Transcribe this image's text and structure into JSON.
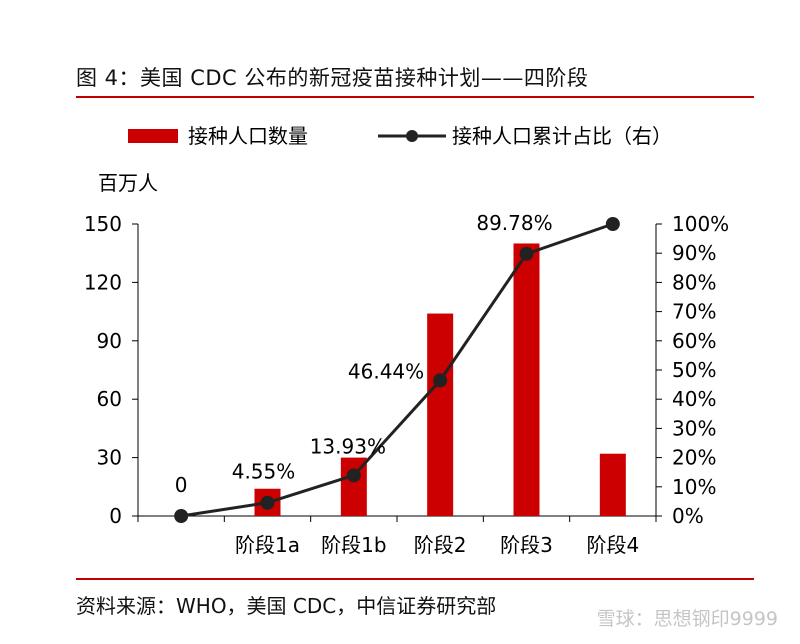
{
  "title": "图 4：美国 CDC 公布的新冠疫苗接种计划——四阶段",
  "source": "资料来源：WHO，美国 CDC，中信证券研究部",
  "watermark": "雪球：思想钢印9999",
  "colors": {
    "bar": "#cc0000",
    "line": "#222222",
    "rule": "#c00000"
  },
  "chart_data": {
    "type": "bar",
    "categories": [
      "",
      "阶段1a",
      "阶段1b",
      "阶段2",
      "阶段3",
      "阶段4"
    ],
    "series": [
      {
        "name": "接种人口数量",
        "type": "bar",
        "axis": "left",
        "values": [
          0,
          14,
          30,
          104,
          140,
          32
        ]
      },
      {
        "name": "接种人口累计占比（右）",
        "type": "line",
        "axis": "right",
        "values": [
          0,
          4.55,
          13.93,
          46.44,
          89.78,
          100
        ]
      }
    ],
    "data_labels": [
      "0",
      "4.55%",
      "13.93%",
      "46.44%",
      "89.78%",
      ""
    ],
    "ylabel": "百万人",
    "ylim": [
      0,
      150
    ],
    "yticks": [
      "0",
      "30",
      "60",
      "90",
      "120",
      "150"
    ],
    "y2lim": [
      0,
      100
    ],
    "y2ticks": [
      "0%",
      "10%",
      "20%",
      "30%",
      "40%",
      "50%",
      "60%",
      "70%",
      "80%",
      "90%",
      "100%"
    ],
    "legend": [
      "接种人口数量",
      "接种人口累计占比（右）"
    ],
    "legend_position": "top",
    "grid": false
  }
}
